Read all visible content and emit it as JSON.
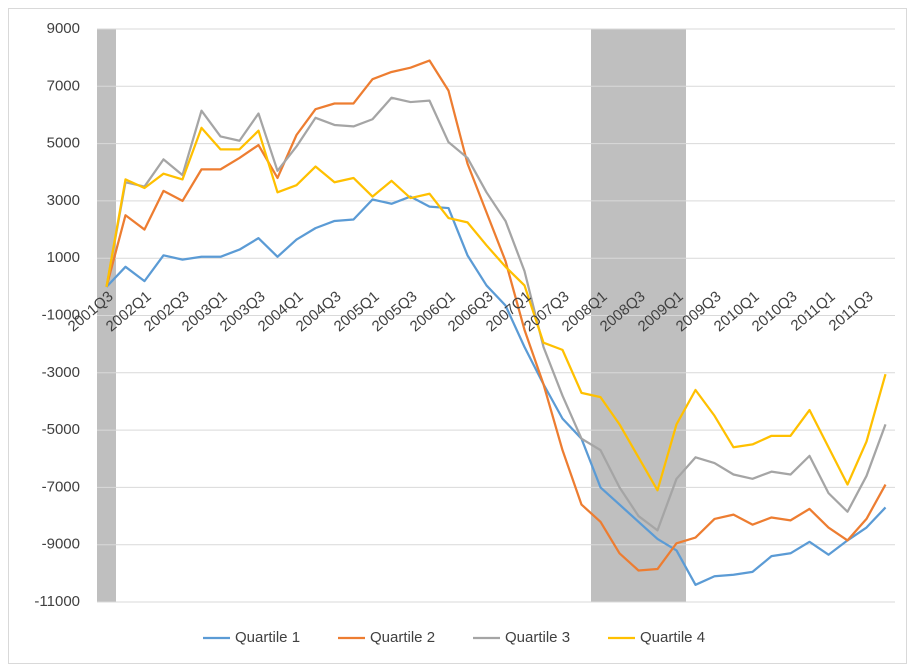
{
  "chart_data": {
    "type": "line",
    "categories": [
      "2001Q3",
      null,
      "2002Q1",
      null,
      "2002Q3",
      null,
      "2003Q1",
      null,
      "2003Q3",
      null,
      "2004Q1",
      null,
      "2004Q3",
      null,
      "2005Q1",
      null,
      "2005Q3",
      null,
      "2006Q1",
      null,
      "2006Q3",
      null,
      "2007Q1",
      null,
      "2007Q3",
      null,
      "2008Q1",
      null,
      "2008Q3",
      null,
      "2009Q1",
      null,
      "2009Q3",
      null,
      "2010Q1",
      null,
      "2010Q3",
      null,
      "2011Q1",
      null,
      "2011Q3",
      null
    ],
    "series": [
      {
        "name": "Quartile 1",
        "color": "#5b9bd5",
        "values": [
          0,
          700,
          200,
          1100,
          950,
          1050,
          1050,
          1300,
          1700,
          1050,
          1650,
          2050,
          2300,
          2350,
          3050,
          2900,
          3150,
          2800,
          2750,
          1100,
          50,
          -650,
          -2100,
          -3400,
          -4600,
          -5300,
          -7000,
          -7600,
          -8200,
          -8800,
          -9200,
          -10400,
          -10100,
          -10050,
          -9950,
          -9400,
          -9300,
          -8900,
          -9350,
          -8850,
          -8400,
          -7700
        ]
      },
      {
        "name": "Quartile 2",
        "color": "#ed7d31",
        "values": [
          0,
          2500,
          2000,
          3350,
          3000,
          4100,
          4100,
          4500,
          4950,
          3800,
          5300,
          6200,
          6400,
          6400,
          7250,
          7500,
          7650,
          7900,
          6850,
          4300,
          2600,
          900,
          -1500,
          -3400,
          -5700,
          -7600,
          -8200,
          -9300,
          -9900,
          -9850,
          -8950,
          -8750,
          -8100,
          -7950,
          -8300,
          -8050,
          -8150,
          -7750,
          -8400,
          -8850,
          -8100,
          -6900
        ]
      },
      {
        "name": "Quartile 3",
        "color": "#a5a5a5",
        "values": [
          0,
          3650,
          3500,
          4450,
          3900,
          6150,
          5250,
          5100,
          6050,
          4050,
          4900,
          5900,
          5650,
          5600,
          5850,
          6600,
          6450,
          6500,
          5050,
          4500,
          3300,
          2300,
          550,
          -2100,
          -3800,
          -5300,
          -5700,
          -7000,
          -8000,
          -8500,
          -6700,
          -5950,
          -6150,
          -6550,
          -6700,
          -6450,
          -6550,
          -5900,
          -7200,
          -7850,
          -6600,
          -4800
        ]
      },
      {
        "name": "Quartile 4",
        "color": "#ffc000",
        "values": [
          0,
          3750,
          3450,
          3950,
          3750,
          5550,
          4800,
          4800,
          5450,
          3300,
          3550,
          4200,
          3650,
          3800,
          3150,
          3700,
          3100,
          3250,
          2400,
          2250,
          1450,
          700,
          50,
          -1950,
          -2200,
          -3700,
          -3850,
          -4800,
          -5950,
          -7100,
          -4800,
          -3600,
          -4500,
          -5600,
          -5500,
          -5200,
          -5200,
          -4300,
          -5600,
          -6900,
          -5400,
          -3050
        ]
      }
    ],
    "shaded": [
      {
        "from": "2001Q3",
        "to": "2001Q3"
      },
      {
        "from": "2008Q1",
        "to": "2009Q1"
      }
    ],
    "shade_color": "#bfbfbf",
    "ylim": [
      -11000,
      9000
    ],
    "yticks": [
      -11000,
      -9000,
      -7000,
      -5000,
      -3000,
      -1000,
      1000,
      3000,
      5000,
      7000,
      9000
    ],
    "grid": true,
    "legend": "bottom"
  }
}
